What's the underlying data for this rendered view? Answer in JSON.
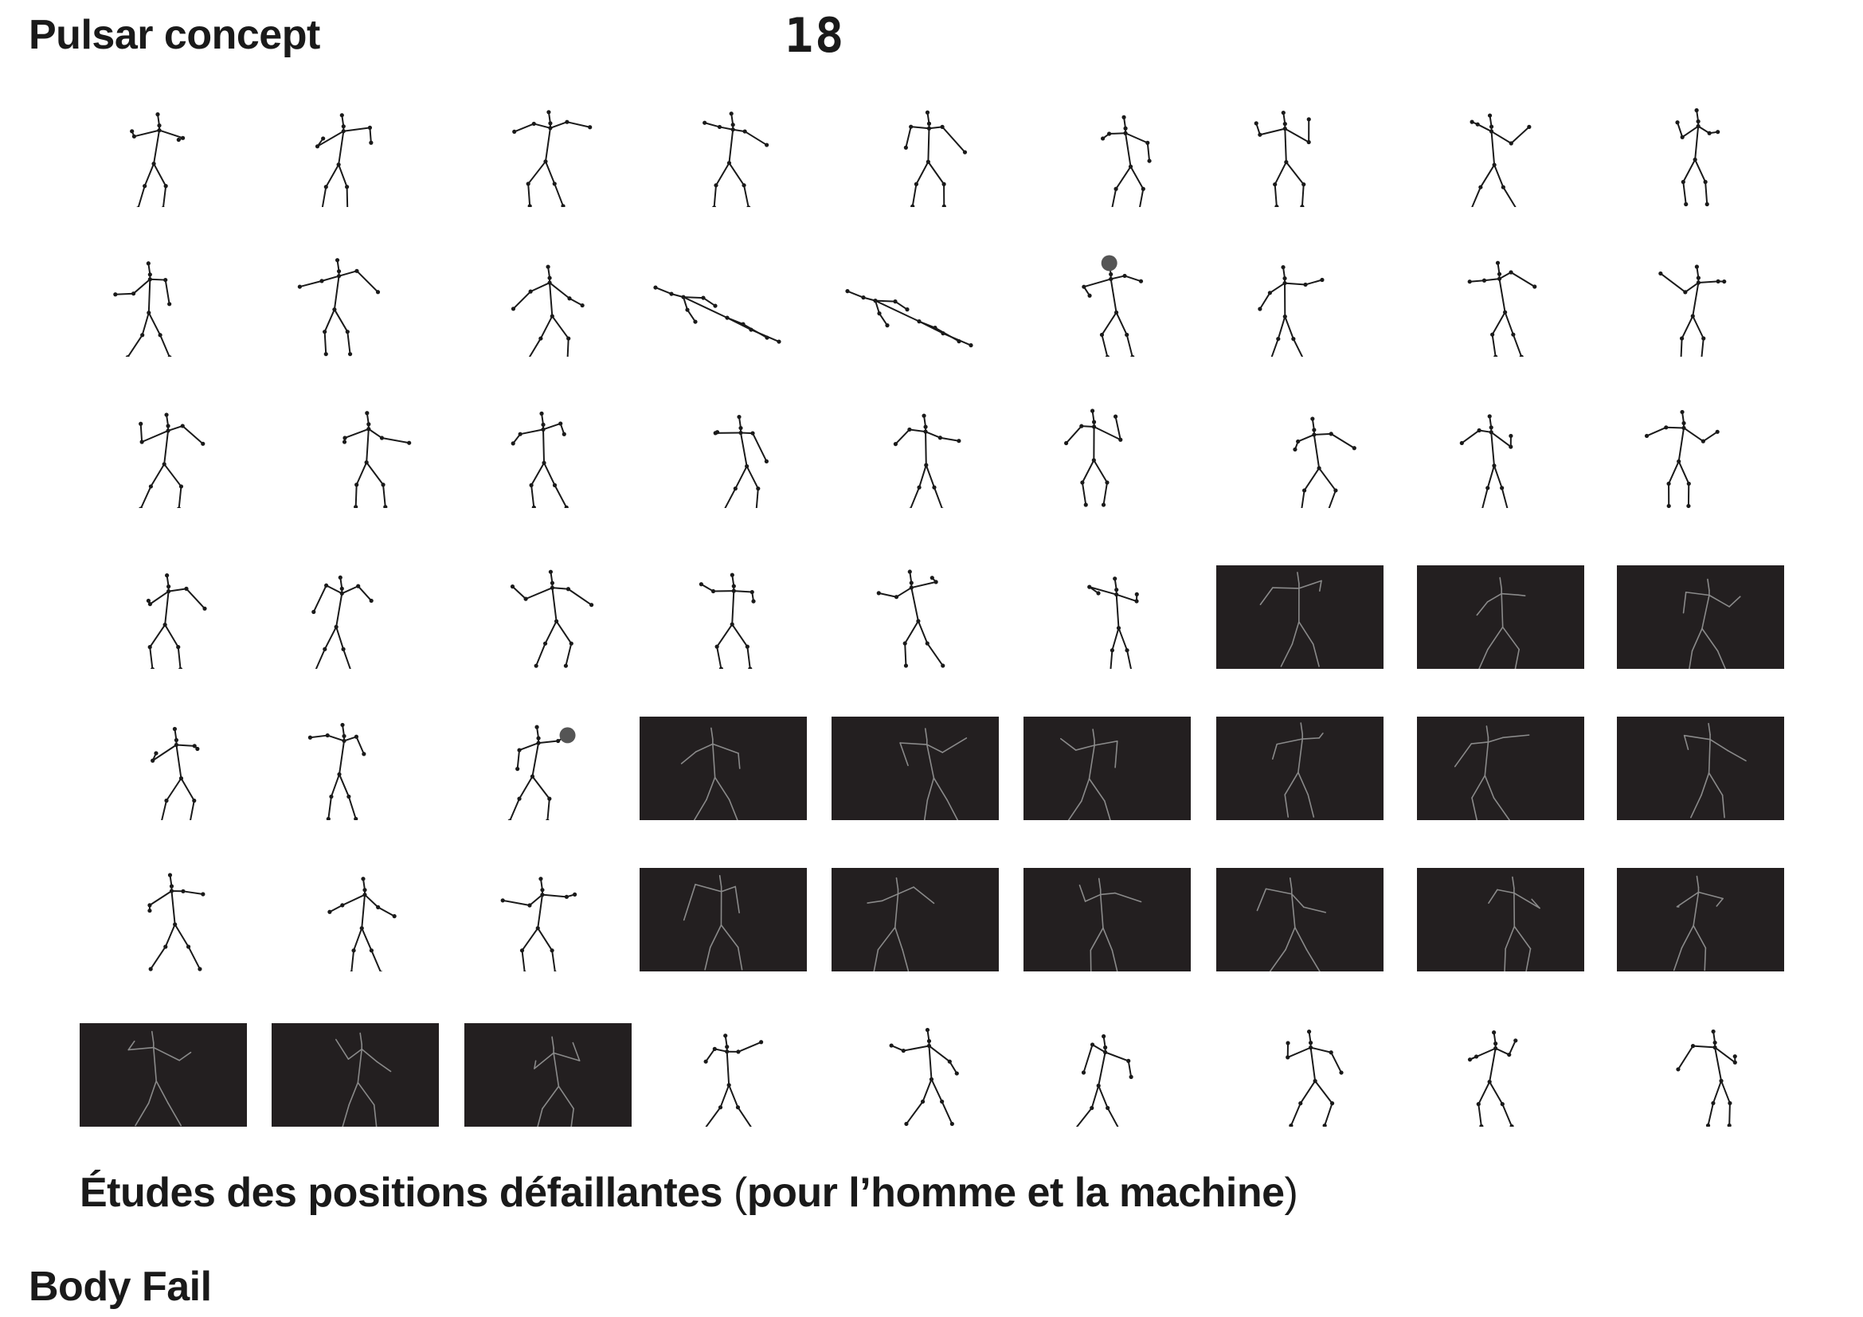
{
  "header": {
    "title": "Pulsar concept",
    "page_number": "18"
  },
  "caption": {
    "text": "Études des positions défaillantes",
    "open_paren": "(",
    "inner": "pour l’homme et la machine",
    "close_paren": ")"
  },
  "footer": {
    "title": "Body Fail"
  },
  "colors": {
    "background": "#ffffff",
    "ink": "#1a1a1a",
    "dark_frame": "#231f20",
    "dark_stroke": "#8a8a8a"
  },
  "grid": {
    "rows": [
      [
        "white",
        "white",
        "white",
        "white",
        "white",
        "white",
        "white",
        "white",
        "white"
      ],
      [
        "white",
        "white",
        "white",
        "white",
        "white",
        "white",
        "white",
        "white",
        "white"
      ],
      [
        "white",
        "white",
        "white",
        "white",
        "white",
        "white",
        "white",
        "white",
        "white"
      ],
      [
        "white",
        "white",
        "white",
        "white",
        "white",
        "white",
        "dark",
        "dark",
        "dark"
      ],
      [
        "white",
        "white",
        "white",
        "dark",
        "dark",
        "dark",
        "dark",
        "dark",
        "dark"
      ],
      [
        "white",
        "white",
        "white",
        "dark",
        "dark",
        "dark",
        "dark",
        "dark",
        "dark"
      ],
      [
        "dark",
        "dark",
        "dark",
        "white",
        "white",
        "white",
        "white",
        "white",
        "white"
      ]
    ],
    "highlighted_joints": [
      [
        1,
        5
      ],
      [
        4,
        2
      ]
    ],
    "figure_icon": "stick-figure-icon"
  }
}
